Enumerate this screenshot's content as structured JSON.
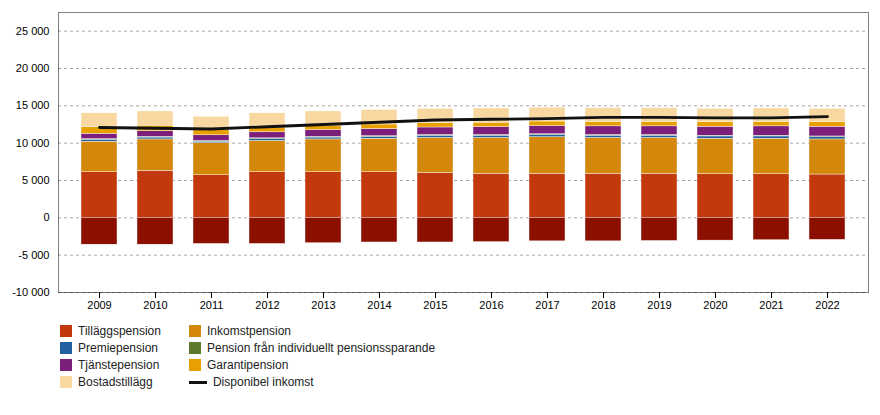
{
  "chart_data": {
    "type": "bar",
    "stacked": true,
    "categories": [
      "2009",
      "2010",
      "2011",
      "2012",
      "2013",
      "2014",
      "2015",
      "2016",
      "2017",
      "2018",
      "2019",
      "2020",
      "2021",
      "2022"
    ],
    "series": [
      {
        "name": "Tilläggspension",
        "color": "#C1390C",
        "values": [
          6100,
          6300,
          5700,
          6100,
          6100,
          6100,
          6000,
          5900,
          5900,
          5900,
          5900,
          5850,
          5850,
          5800
        ]
      },
      {
        "name": "Inkomstpension",
        "color": "#D4880A",
        "values": [
          4100,
          4200,
          4300,
          4200,
          4400,
          4500,
          4700,
          4800,
          4900,
          4800,
          4800,
          4750,
          4750,
          4700
        ]
      },
      {
        "name": "Premiepension",
        "color": "#2060A0",
        "values": [
          250,
          250,
          200,
          250,
          250,
          250,
          300,
          300,
          300,
          300,
          300,
          300,
          300,
          300
        ]
      },
      {
        "name": "Pension från individuellt pensionssparande",
        "color": "#5D7A2C",
        "values": [
          100,
          100,
          100,
          100,
          100,
          100,
          100,
          100,
          100,
          100,
          100,
          100,
          100,
          100
        ]
      },
      {
        "name": "Tjänstepension",
        "color": "#7B1F7B",
        "values": [
          700,
          750,
          750,
          800,
          900,
          950,
          1000,
          1050,
          1100,
          1150,
          1150,
          1200,
          1250,
          1300
        ]
      },
      {
        "name": "Garantipension",
        "color": "#E8A000",
        "values": [
          900,
          750,
          700,
          650,
          600,
          600,
          600,
          600,
          600,
          600,
          600,
          600,
          600,
          600
        ]
      },
      {
        "name": "Bostadstillägg",
        "color": "#F8D8A0",
        "values": [
          1850,
          1900,
          1800,
          1900,
          1900,
          1950,
          1900,
          1900,
          1850,
          1850,
          1850,
          1800,
          1800,
          1800
        ]
      },
      {
        "color": "#8B1000",
        "values": [
          -3600,
          -3600,
          -3500,
          -3500,
          -3400,
          -3300,
          -3300,
          -3250,
          -3150,
          -3150,
          -3100,
          -3050,
          -3000,
          -2950
        ]
      },
      {
        "name": "Disponibel inkomst",
        "type": "line",
        "color": "#111111",
        "values": [
          12100,
          12000,
          11900,
          12200,
          12500,
          12800,
          13100,
          13200,
          13300,
          13450,
          13450,
          13400,
          13400,
          13560
        ]
      }
    ],
    "ylim": [
      -10000,
      27500
    ],
    "yticks": [
      {
        "value": -10000,
        "label": "-10 000"
      },
      {
        "value": -5000,
        "label": "-5 000"
      },
      0,
      {
        "value": 5000,
        "label": "5 000"
      },
      {
        "value": 10000,
        "label": "10 000"
      },
      {
        "value": 15000,
        "label": "15 000"
      },
      {
        "value": 20000,
        "label": "20 000"
      },
      {
        "value": 25000,
        "label": "25 000"
      }
    ],
    "grid": true,
    "legend": "bottom"
  }
}
